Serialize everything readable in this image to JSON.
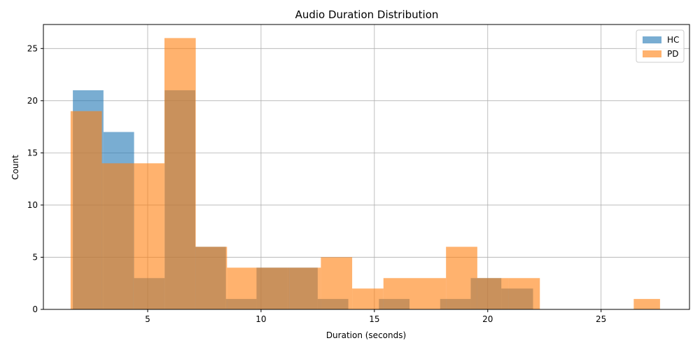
{
  "chart_data": {
    "type": "bar",
    "subtype": "histogram-overlay",
    "title": "Audio Duration Distribution",
    "xlabel": "Duration (seconds)",
    "ylabel": "Count",
    "xlim": [
      0.4,
      28.9
    ],
    "ylim": [
      0,
      27.3
    ],
    "xticks": [
      5,
      10,
      15,
      20,
      25
    ],
    "yticks": [
      0,
      5,
      10,
      15,
      20,
      25
    ],
    "grid": true,
    "legend_position": "top-right",
    "series": [
      {
        "name": "HC",
        "color": "#1f77b4",
        "opacity": 0.6,
        "bins": [
          {
            "x0": 1.7,
            "x1": 3.05,
            "count": 21
          },
          {
            "x0": 3.05,
            "x1": 4.4,
            "count": 17
          },
          {
            "x0": 4.4,
            "x1": 5.75,
            "count": 3
          },
          {
            "x0": 5.75,
            "x1": 7.1,
            "count": 21
          },
          {
            "x0": 7.1,
            "x1": 8.45,
            "count": 6
          },
          {
            "x0": 8.45,
            "x1": 9.8,
            "count": 1
          },
          {
            "x0": 9.8,
            "x1": 11.15,
            "count": 4
          },
          {
            "x0": 11.15,
            "x1": 12.5,
            "count": 4
          },
          {
            "x0": 12.5,
            "x1": 13.85,
            "count": 1
          },
          {
            "x0": 13.85,
            "x1": 15.2,
            "count": 0
          },
          {
            "x0": 15.2,
            "x1": 16.55,
            "count": 1
          },
          {
            "x0": 16.55,
            "x1": 17.9,
            "count": 0
          },
          {
            "x0": 17.9,
            "x1": 19.25,
            "count": 1
          },
          {
            "x0": 19.25,
            "x1": 20.6,
            "count": 3
          },
          {
            "x0": 20.6,
            "x1": 22.0,
            "count": 2
          }
        ]
      },
      {
        "name": "PD",
        "color": "#ff7f0e",
        "opacity": 0.6,
        "bins": [
          {
            "x0": 1.6,
            "x1": 2.98,
            "count": 19
          },
          {
            "x0": 2.98,
            "x1": 4.36,
            "count": 14
          },
          {
            "x0": 4.36,
            "x1": 5.74,
            "count": 14
          },
          {
            "x0": 5.74,
            "x1": 7.12,
            "count": 26
          },
          {
            "x0": 7.12,
            "x1": 8.5,
            "count": 6
          },
          {
            "x0": 8.5,
            "x1": 9.88,
            "count": 4
          },
          {
            "x0": 9.88,
            "x1": 11.26,
            "count": 4
          },
          {
            "x0": 11.26,
            "x1": 12.64,
            "count": 4
          },
          {
            "x0": 12.64,
            "x1": 14.02,
            "count": 5
          },
          {
            "x0": 14.02,
            "x1": 15.4,
            "count": 2
          },
          {
            "x0": 15.4,
            "x1": 16.78,
            "count": 3
          },
          {
            "x0": 16.78,
            "x1": 18.16,
            "count": 3
          },
          {
            "x0": 18.16,
            "x1": 19.54,
            "count": 6
          },
          {
            "x0": 19.54,
            "x1": 20.92,
            "count": 3
          },
          {
            "x0": 20.92,
            "x1": 22.3,
            "count": 3
          },
          {
            "x0": 22.3,
            "x1": 23.68,
            "count": 0
          },
          {
            "x0": 23.68,
            "x1": 25.06,
            "count": 0
          },
          {
            "x0": 25.06,
            "x1": 26.44,
            "count": 0
          },
          {
            "x0": 26.44,
            "x1": 27.6,
            "count": 1
          }
        ]
      }
    ]
  }
}
